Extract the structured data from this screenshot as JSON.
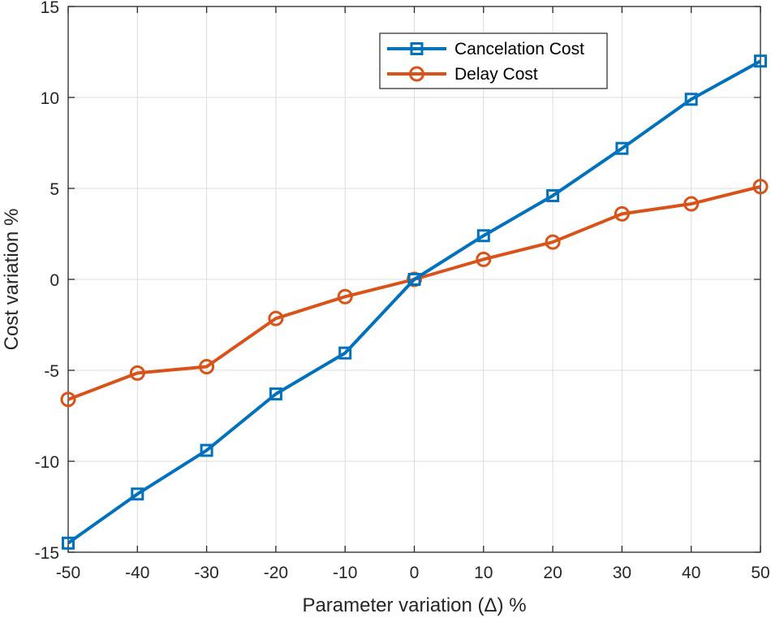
{
  "chart_data": {
    "type": "line",
    "title": "",
    "xlabel": "Parameter variation (Δ) %",
    "ylabel": "Cost variation %",
    "x": [
      -50,
      -40,
      -30,
      -20,
      -10,
      0,
      10,
      20,
      30,
      40,
      50
    ],
    "xlim": [
      -50,
      50
    ],
    "ylim": [
      -15,
      15
    ],
    "xticks": [
      -50,
      -40,
      -30,
      -20,
      -10,
      0,
      10,
      20,
      30,
      40,
      50
    ],
    "yticks": [
      -15,
      -10,
      -5,
      0,
      5,
      10,
      15
    ],
    "grid": true,
    "legend_position": "top-right",
    "series": [
      {
        "name": "Cancelation Cost",
        "marker": "square",
        "color": "#0072BD",
        "values": [
          -14.5,
          -11.8,
          -9.4,
          -6.3,
          -4.05,
          0,
          2.4,
          4.6,
          7.2,
          9.9,
          12.0
        ]
      },
      {
        "name": "Delay Cost",
        "marker": "circle",
        "color": "#D95319",
        "values": [
          -6.6,
          -5.15,
          -4.8,
          -2.15,
          -0.95,
          0,
          1.1,
          2.05,
          3.6,
          4.15,
          5.1
        ]
      }
    ]
  }
}
